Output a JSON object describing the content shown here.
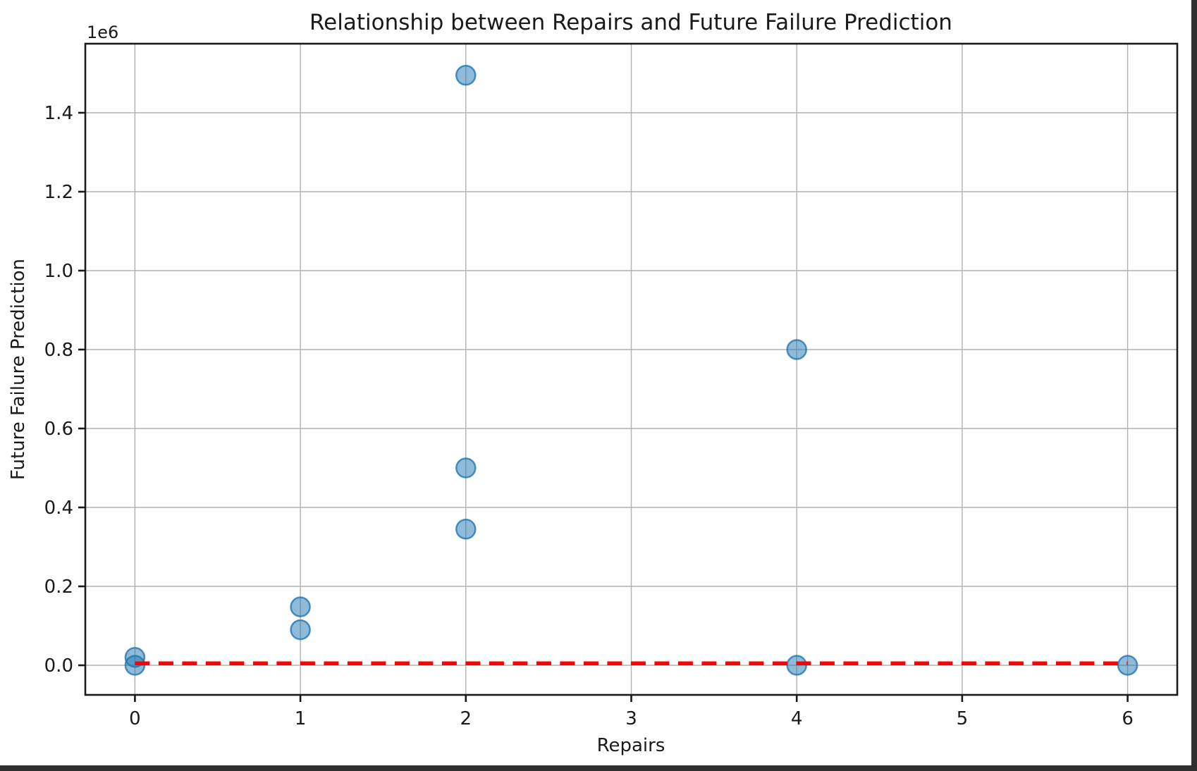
{
  "window": {
    "background": "#ffffff",
    "desktop_edge_color": "#2f2f2f"
  },
  "chart_data": {
    "type": "scatter",
    "title": "Relationship between Repairs and Future Failure Prediction",
    "xlabel": "Repairs",
    "ylabel": "Future Failure Prediction",
    "y_offset_label": "1e6",
    "grid": true,
    "legend": null,
    "xlim": [
      -0.3,
      6.3
    ],
    "ylim": [
      -75000,
      1575000
    ],
    "x_ticks": [
      0,
      1,
      2,
      3,
      4,
      5,
      6
    ],
    "x_tick_labels": [
      "0",
      "1",
      "2",
      "3",
      "4",
      "5",
      "6"
    ],
    "y_ticks": [
      0,
      200000,
      400000,
      600000,
      800000,
      1000000,
      1200000,
      1400000
    ],
    "y_tick_labels": [
      "0.0",
      "0.2",
      "0.4",
      "0.6",
      "0.8",
      "1.0",
      "1.2",
      "1.4"
    ],
    "series": [
      {
        "name": "repairs-vs-failure-points",
        "type": "scatter",
        "color": "#1f77b4",
        "alpha": 0.5,
        "points": [
          [
            0,
            20000
          ],
          [
            0,
            0
          ],
          [
            1,
            148000
          ],
          [
            1,
            90000
          ],
          [
            2,
            1495000
          ],
          [
            2,
            500000
          ],
          [
            2,
            345000
          ],
          [
            4,
            800000
          ],
          [
            4,
            0
          ],
          [
            6,
            0
          ]
        ]
      },
      {
        "name": "prediction-line",
        "type": "line",
        "style": "dashed",
        "color": "#ff0000",
        "points": [
          [
            0,
            5000
          ],
          [
            6,
            5000
          ]
        ]
      }
    ],
    "grid_color": "#b0b0b0",
    "axis_color": "#1a1a1a",
    "text_color": "#1a1a1a"
  }
}
